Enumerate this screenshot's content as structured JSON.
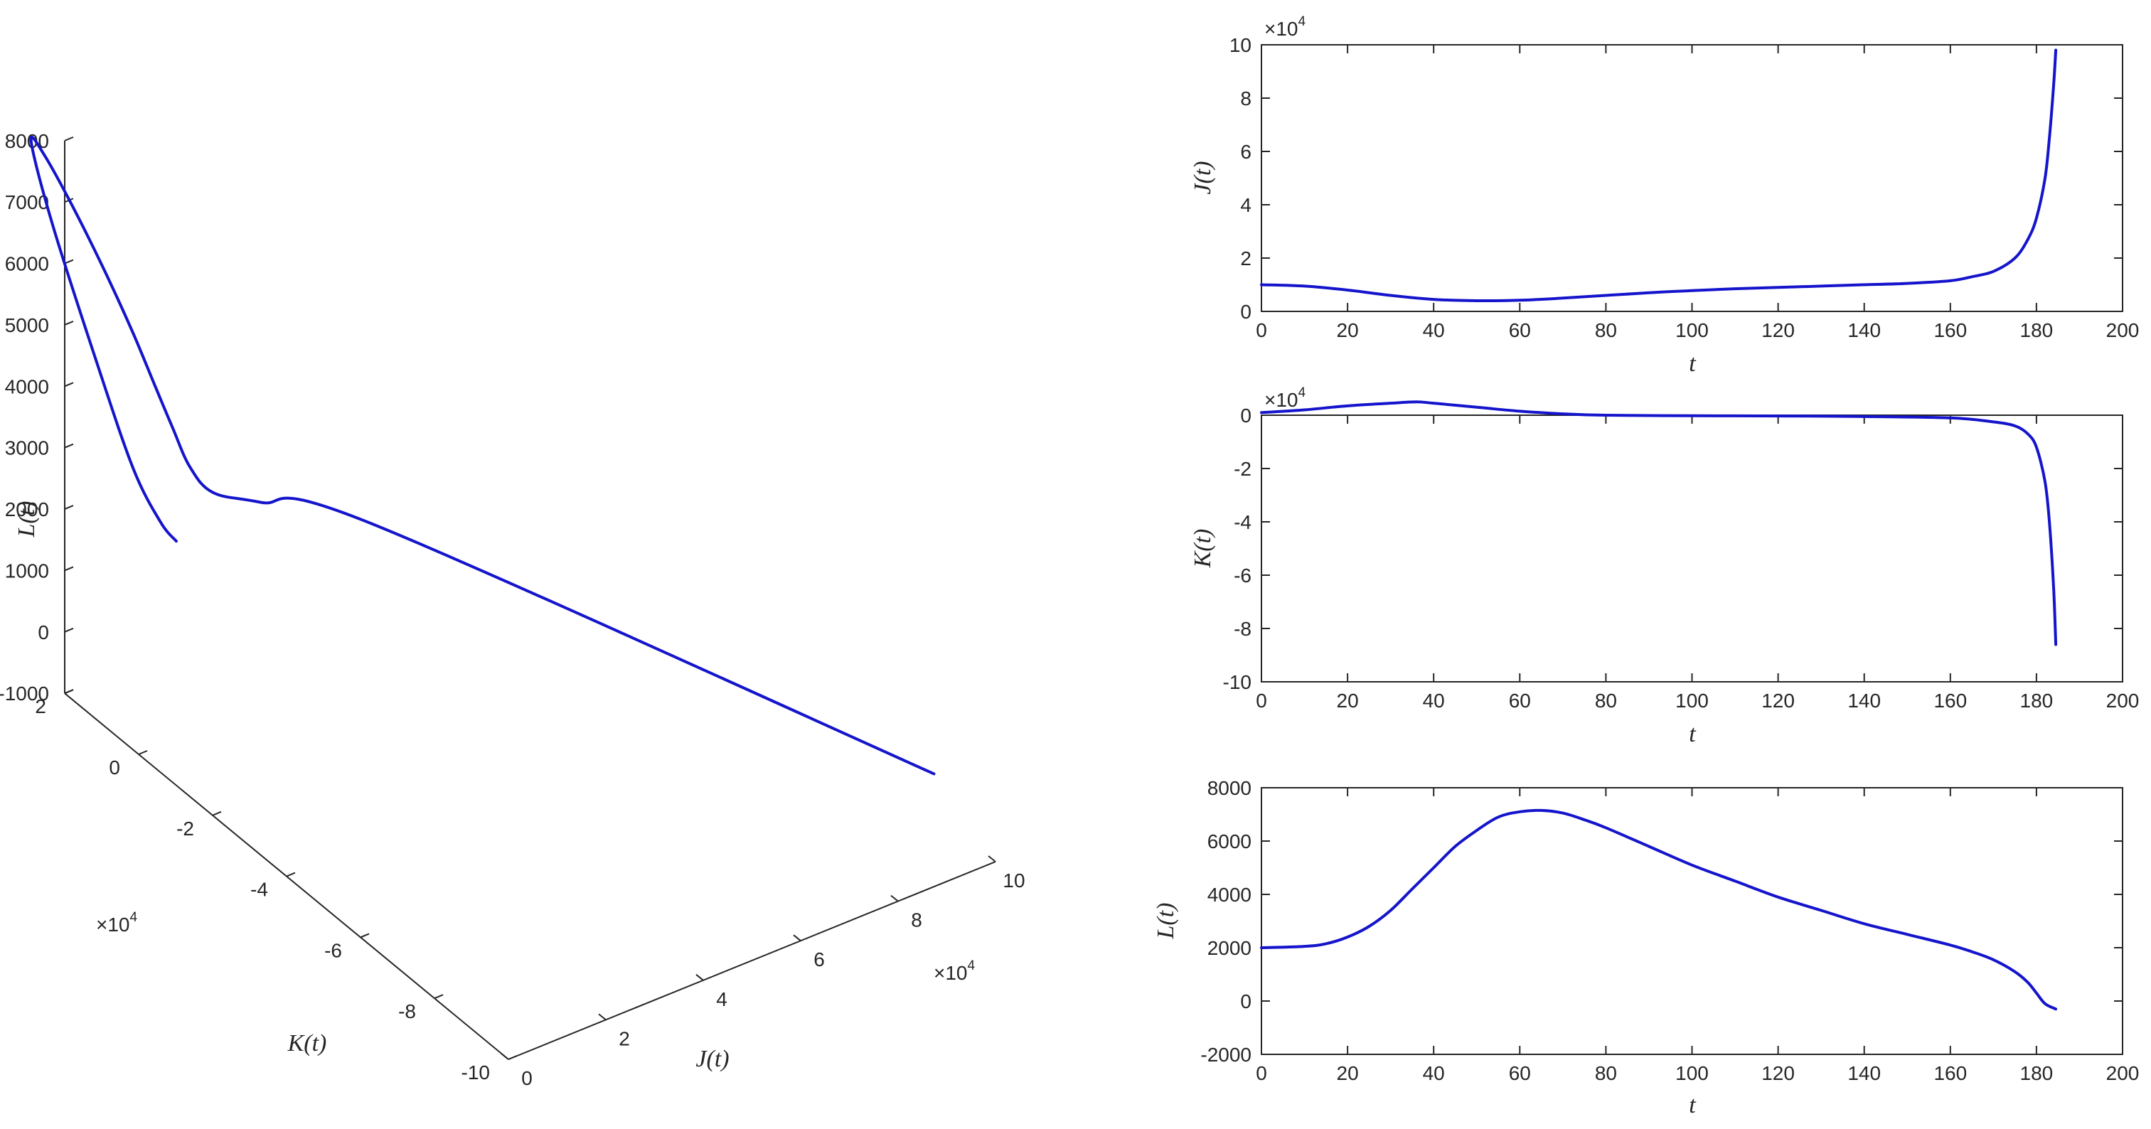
{
  "colors": {
    "curve": "#1414cc",
    "axes": "#262626"
  },
  "chart_data": [
    {
      "type": "line",
      "projection": "3d",
      "xlabel": "J(t)",
      "ylabel": "K(t)",
      "zlabel": "L(t)",
      "x_exponent": "×10^4",
      "y_exponent": "×10^4",
      "xlim": [
        0,
        10
      ],
      "ylim": [
        -10,
        2
      ],
      "zlim": [
        -1000,
        8000
      ],
      "xticks": [
        "0",
        "2",
        "4",
        "6",
        "8",
        "10"
      ],
      "yticks": [
        "2",
        "0",
        "-2",
        "-4",
        "-6",
        "-8",
        "-10"
      ],
      "zticks": [
        "8000",
        "7000",
        "6000",
        "5000",
        "4000",
        "3000",
        "2000",
        "1000",
        "0",
        "-1000"
      ],
      "grid": false,
      "series": [
        {
          "x": [
            1.0,
            0.9,
            0.8,
            0.65,
            0.5,
            0.45,
            0.5,
            0.6,
            0.7,
            0.8,
            0.9,
            1.0,
            1.2,
            1.6,
            2.5,
            4.5,
            9.8
          ],
          "y": [
            0.3,
            0.6,
            1.2,
            2.0,
            3.0,
            3.5,
            3.2,
            2.5,
            1.8,
            1.2,
            0.7,
            0.4,
            0.2,
            0.1,
            0.0,
            -0.4,
            -8.6
          ],
          "z": [
            2000,
            2200,
            2800,
            4200,
            6000,
            7100,
            7000,
            6400,
            5700,
            5000,
            4300,
            3800,
            3200,
            2700,
            2300,
            1500,
            -200
          ]
        }
      ]
    },
    {
      "type": "line",
      "xlabel": "t",
      "ylabel": "J(t)",
      "exponent": "×10^4",
      "xlim": [
        0,
        200
      ],
      "ylim": [
        0,
        10
      ],
      "xticks": [
        "0",
        "20",
        "40",
        "60",
        "80",
        "100",
        "120",
        "140",
        "160",
        "180",
        "200"
      ],
      "yticks": [
        "0",
        "2",
        "4",
        "6",
        "8",
        "10"
      ],
      "grid": false,
      "series": [
        {
          "x": [
            0,
            10,
            20,
            30,
            40,
            50,
            60,
            70,
            80,
            90,
            100,
            110,
            120,
            130,
            140,
            150,
            160,
            165,
            170,
            175,
            178,
            180,
            182,
            183,
            184,
            184.5
          ],
          "y": [
            1.0,
            0.95,
            0.8,
            0.6,
            0.45,
            0.4,
            0.42,
            0.5,
            0.6,
            0.7,
            0.78,
            0.85,
            0.9,
            0.95,
            1.0,
            1.05,
            1.15,
            1.3,
            1.5,
            2.0,
            2.7,
            3.5,
            5.0,
            6.5,
            8.5,
            9.8
          ]
        }
      ]
    },
    {
      "type": "line",
      "xlabel": "t",
      "ylabel": "K(t)",
      "exponent": "×10^4",
      "xlim": [
        0,
        200
      ],
      "ylim": [
        -10,
        0
      ],
      "xticks": [
        "0",
        "20",
        "40",
        "60",
        "80",
        "100",
        "120",
        "140",
        "160",
        "180",
        "200"
      ],
      "yticks": [
        "0",
        "-2",
        "-4",
        "-6",
        "-8",
        "-10"
      ],
      "grid": false,
      "series": [
        {
          "x": [
            0,
            10,
            20,
            30,
            36,
            40,
            50,
            60,
            70,
            80,
            100,
            120,
            140,
            160,
            170,
            175,
            178,
            180,
            182,
            183,
            184,
            184.5
          ],
          "y": [
            0.1,
            0.2,
            0.35,
            0.45,
            0.5,
            0.45,
            0.3,
            0.15,
            0.05,
            0.0,
            -0.02,
            -0.03,
            -0.05,
            -0.1,
            -0.25,
            -0.4,
            -0.7,
            -1.2,
            -2.5,
            -4.0,
            -6.5,
            -8.6
          ]
        }
      ]
    },
    {
      "type": "line",
      "xlabel": "t",
      "ylabel": "L(t)",
      "xlim": [
        0,
        200
      ],
      "ylim": [
        -2000,
        8000
      ],
      "xticks": [
        "0",
        "20",
        "40",
        "60",
        "80",
        "100",
        "120",
        "140",
        "160",
        "180",
        "200"
      ],
      "yticks": [
        "-2000",
        "0",
        "2000",
        "4000",
        "6000",
        "8000"
      ],
      "grid": false,
      "series": [
        {
          "x": [
            0,
            10,
            15,
            20,
            25,
            30,
            35,
            40,
            45,
            50,
            55,
            60,
            65,
            70,
            75,
            80,
            90,
            100,
            110,
            120,
            130,
            140,
            150,
            160,
            165,
            170,
            175,
            178,
            180,
            182,
            184.5
          ],
          "y": [
            2000,
            2050,
            2150,
            2400,
            2800,
            3400,
            4200,
            5000,
            5800,
            6400,
            6900,
            7100,
            7150,
            7050,
            6800,
            6500,
            5800,
            5100,
            4500,
            3900,
            3400,
            2900,
            2500,
            2100,
            1850,
            1550,
            1100,
            700,
            300,
            -100,
            -300
          ]
        }
      ]
    }
  ]
}
